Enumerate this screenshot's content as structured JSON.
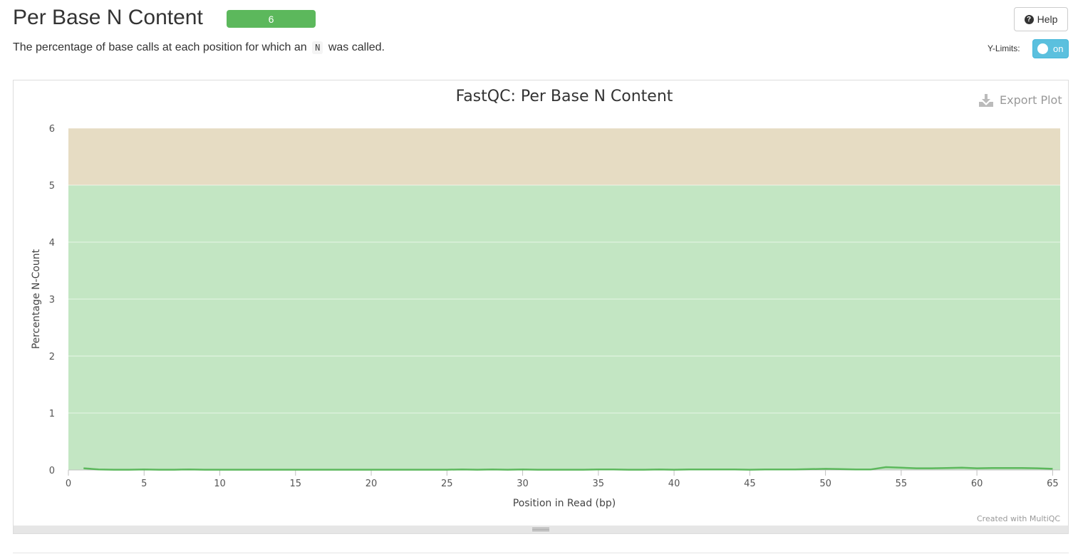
{
  "header": {
    "title": "Per Base N Content",
    "badge_count": "6",
    "badge_color": "#5cb85c",
    "description_before": "The percentage of base calls at each position for which an",
    "description_code": "N",
    "description_after": "was called.",
    "help_label": "Help",
    "help_icon": "question-circle-icon",
    "ylimits_label": "Y-Limits:",
    "ylimits_toggle": "on"
  },
  "plot": {
    "export_label": "Export Plot",
    "export_icon": "download-icon",
    "credit": "Created with MultiQC"
  },
  "chart_data": {
    "type": "line",
    "title": "FastQC: Per Base N Content",
    "xlabel": "Position in Read (bp)",
    "ylabel": "Percentage N-Count",
    "xlim": [
      0,
      65.5
    ],
    "ylim": [
      0,
      6
    ],
    "xticks": [
      0,
      5,
      10,
      15,
      20,
      25,
      30,
      35,
      40,
      45,
      50,
      55,
      60,
      65
    ],
    "yticks": [
      0,
      1,
      2,
      3,
      4,
      5,
      6
    ],
    "bands": [
      {
        "from": 0,
        "to": 5,
        "color": "#c3e6c3"
      },
      {
        "from": 5,
        "to": 6,
        "color": "#e6dcc3"
      }
    ],
    "grid": true,
    "series": [
      {
        "color": "#5cb85c",
        "x": [
          1,
          2,
          3,
          4,
          5,
          6,
          7,
          8,
          9,
          10,
          11,
          12,
          13,
          14,
          15,
          16,
          17,
          18,
          19,
          20,
          21,
          22,
          23,
          24,
          25,
          26,
          27,
          28,
          29,
          30,
          31,
          32,
          33,
          34,
          35,
          36,
          37,
          38,
          39,
          40,
          41,
          42,
          43,
          44,
          45,
          46,
          47,
          48,
          49,
          50,
          51,
          52,
          53,
          54,
          55,
          56,
          57,
          58,
          59,
          60,
          61,
          62,
          63,
          64,
          65
        ],
        "values": [
          0.03,
          0.01,
          0.005,
          0.005,
          0.01,
          0.005,
          0.005,
          0.01,
          0.005,
          0.005,
          0.005,
          0.005,
          0.005,
          0.005,
          0.005,
          0.005,
          0.005,
          0.005,
          0.005,
          0.005,
          0.005,
          0.005,
          0.005,
          0.005,
          0.005,
          0.01,
          0.005,
          0.01,
          0.005,
          0.01,
          0.005,
          0.005,
          0.005,
          0.005,
          0.01,
          0.01,
          0.005,
          0.005,
          0.01,
          0.005,
          0.01,
          0.01,
          0.01,
          0.01,
          0.005,
          0.01,
          0.01,
          0.01,
          0.015,
          0.02,
          0.015,
          0.01,
          0.01,
          0.05,
          0.04,
          0.03,
          0.03,
          0.035,
          0.04,
          0.03,
          0.035,
          0.035,
          0.035,
          0.03,
          0.02
        ]
      }
    ]
  }
}
